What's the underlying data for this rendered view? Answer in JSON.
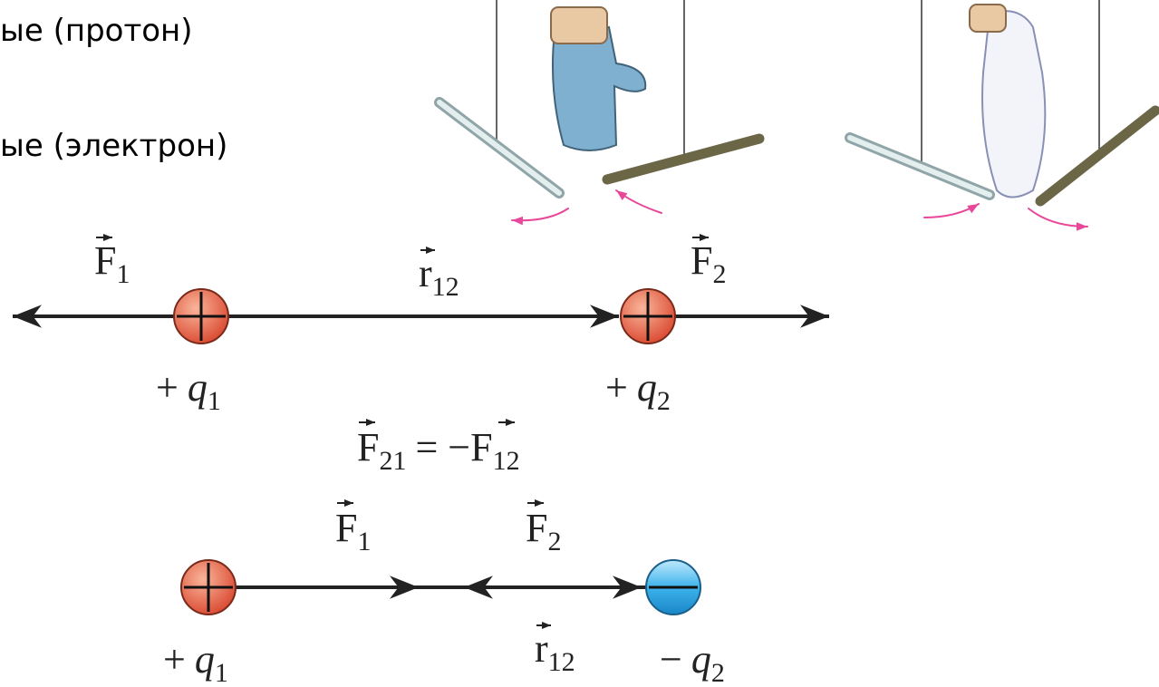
{
  "text_lines": [
    "ые (протон)",
    "ые (электрон)"
  ],
  "top_diagram": {
    "force_1": {
      "symbol": "F",
      "subscript": "1"
    },
    "distance": {
      "symbol": "r",
      "subscript": "12"
    },
    "force_2": {
      "symbol": "F",
      "subscript": "2"
    },
    "charge_1": {
      "sign": "+",
      "symbol": "q",
      "subscript": "1"
    },
    "charge_2": {
      "sign": "+",
      "symbol": "q",
      "subscript": "2"
    }
  },
  "equation": {
    "left_symbol": "F",
    "left_subscript": "21",
    "operator": "= −",
    "right_symbol": "F",
    "right_subscript": "12"
  },
  "bottom_diagram": {
    "force_1": {
      "symbol": "F",
      "subscript": "1"
    },
    "force_2": {
      "symbol": "F",
      "subscript": "2"
    },
    "distance": {
      "symbol": "r",
      "subscript": "12"
    },
    "charge_1": {
      "sign": "+",
      "symbol": "q",
      "subscript": "1"
    },
    "charge_2": {
      "sign": "−",
      "symbol": "q",
      "subscript": "2"
    }
  }
}
